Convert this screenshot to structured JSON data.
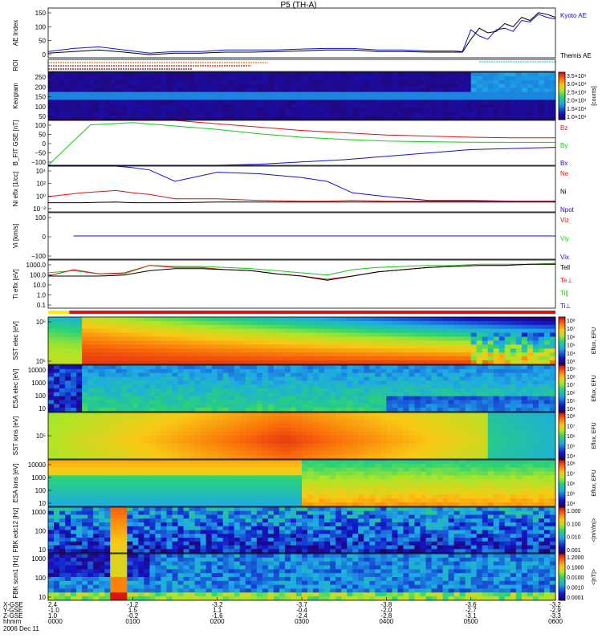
{
  "title": "P5 (TH-A)",
  "colors": {
    "black": "#000000",
    "red": "#dd1111",
    "green": "#11cc11",
    "blue": "#1111cc",
    "cyan": "#22cccc",
    "orange": "#dd7711"
  },
  "chart_data": [
    {
      "id": "ae",
      "type": "line",
      "ylabel": "AE Index",
      "yticks": [
        "150",
        "100",
        "50",
        "0"
      ],
      "ylim": [
        0,
        160
      ],
      "legend": [
        {
          "label": "Kyoto AE",
          "color": "#1111cc"
        },
        {
          "label": "Themis AE",
          "color": "#000000"
        }
      ],
      "x_hours": [
        0,
        0.3,
        0.6,
        0.9,
        1.2,
        1.5,
        1.8,
        2.1,
        2.4,
        2.7,
        3.0,
        3.3,
        3.6,
        3.9,
        4.2,
        4.5,
        4.8,
        4.9,
        5.0,
        5.1,
        5.2,
        5.3,
        5.4,
        5.5,
        5.6,
        5.7,
        5.8,
        5.9,
        6.0
      ],
      "series": [
        {
          "values": [
            20,
            30,
            35,
            25,
            15,
            20,
            20,
            25,
            25,
            25,
            28,
            30,
            30,
            25,
            25,
            22,
            22,
            20,
            90,
            70,
            60,
            90,
            95,
            85,
            120,
            115,
            140,
            130,
            125
          ],
          "color": "#1111cc"
        },
        {
          "values": [
            15,
            20,
            25,
            18,
            10,
            15,
            15,
            18,
            18,
            20,
            22,
            25,
            25,
            20,
            20,
            18,
            18,
            18,
            60,
            95,
            80,
            85,
            110,
            100,
            130,
            120,
            145,
            140,
            130
          ],
          "color": "#000000"
        }
      ]
    },
    {
      "id": "roi",
      "type": "bar",
      "ylabel": "ROI"
    },
    {
      "id": "keogram",
      "type": "heatmap",
      "ylabel": "Keogram",
      "yticks": [
        "250",
        "200",
        "150",
        "100",
        "50"
      ],
      "colorbar_ticks": [
        "3.5×10⁴",
        "3.0×10⁴",
        "2.5×10⁴",
        "2.0×10⁴",
        "1.5×10⁴",
        "1.0×10⁴"
      ],
      "colorbar_label": "[counts]"
    },
    {
      "id": "bfield",
      "type": "line",
      "ylabel": "B_FIT GSE [nT]",
      "yticks": [
        "100",
        "50",
        "0",
        "−50",
        "−100"
      ],
      "ylim": [
        -100,
        100
      ],
      "legend": [
        {
          "label": "Bz",
          "color": "#dd1111"
        },
        {
          "label": "By",
          "color": "#11cc11"
        },
        {
          "label": "Bx",
          "color": "#1111cc"
        }
      ],
      "x_hours": [
        0,
        0.5,
        1.0,
        1.5,
        2.0,
        2.5,
        3.0,
        3.5,
        4.0,
        4.5,
        5.0,
        5.5,
        6.0
      ],
      "series": [
        {
          "values": [
            100,
            100,
            100,
            100,
            85,
            70,
            55,
            45,
            35,
            30,
            25,
            22,
            22
          ],
          "color": "#dd1111"
        },
        {
          "values": [
            -100,
            80,
            90,
            75,
            60,
            40,
            25,
            15,
            8,
            5,
            3,
            2,
            2
          ],
          "color": "#11cc11"
        },
        {
          "values": [
            -100,
            -100,
            -100,
            -100,
            -100,
            -95,
            -85,
            -75,
            -60,
            -45,
            -30,
            -25,
            -20
          ],
          "color": "#1111cc"
        }
      ]
    },
    {
      "id": "density",
      "type": "line",
      "ylabel": "Ni eflx [1/cc]",
      "yticks": [
        "10⁴",
        "10²",
        "10⁰",
        "10⁻²"
      ],
      "ylim": [
        -2,
        4
      ],
      "legend": [
        {
          "label": "Ne",
          "color": "#dd1111"
        },
        {
          "label": "Ni",
          "color": "#000000"
        },
        {
          "label": "Npot",
          "color": "#1111cc"
        }
      ],
      "x_hours": [
        0,
        0.4,
        0.8,
        1.0,
        1.2,
        1.5,
        2.0,
        2.5,
        3.0,
        3.3,
        3.6,
        4.0,
        4.5,
        5.0,
        5.5,
        6.0
      ],
      "series": [
        {
          "values": [
            4,
            4,
            4,
            3.8,
            3.5,
            2,
            3.2,
            3,
            2.5,
            2,
            0.5,
            0,
            -0.5,
            -0.5,
            -0.6,
            -0.6
          ],
          "color": "#1111cc"
        },
        {
          "values": [
            0,
            0.5,
            0.8,
            0.5,
            0.3,
            -0.3,
            -0.3,
            -0.5,
            -0.6,
            -0.6,
            -0.5,
            -0.6,
            -0.6,
            -0.6,
            -0.6,
            -0.6
          ],
          "color": "#dd1111"
        },
        {
          "values": [
            -0.8,
            -0.8,
            -0.7,
            -0.8,
            -0.8,
            -0.8,
            -0.7,
            -0.7,
            -0.7,
            -0.7,
            -0.7,
            -0.7,
            -0.7,
            -0.7,
            -0.7,
            -0.7
          ],
          "color": "#000000"
        }
      ]
    },
    {
      "id": "velocity",
      "type": "line",
      "ylabel": "Vi [km/s]",
      "yticks": [
        "100",
        "0",
        "−100"
      ],
      "ylim": [
        -150,
        150
      ],
      "legend": [
        {
          "label": "Viz",
          "color": "#dd1111"
        },
        {
          "label": "Viy",
          "color": "#11cc11"
        },
        {
          "label": "Vix",
          "color": "#1111cc"
        }
      ],
      "x_hours": [
        0.3,
        6.0
      ],
      "series": [
        {
          "values": [
            0,
            0
          ],
          "color": "#dd1111"
        },
        {
          "values": [
            0,
            0
          ],
          "color": "#11cc11"
        },
        {
          "values": [
            0,
            0
          ],
          "color": "#1111cc"
        }
      ]
    },
    {
      "id": "temperature",
      "type": "line",
      "ylabel": "Ti eflx [eV]",
      "yticks": [
        "1000.0",
        "100.0",
        "10.0",
        "1.0",
        "0.1"
      ],
      "ylim": [
        -1,
        3.5
      ],
      "legend": [
        {
          "label": "Tell",
          "color": "#000000"
        },
        {
          "label": "Te⊥",
          "color": "#dd1111"
        },
        {
          "label": "Ti∥",
          "color": "#11cc11"
        },
        {
          "label": "Ti⊥",
          "color": "#1111cc"
        }
      ],
      "x_hours": [
        0,
        0.3,
        0.6,
        0.9,
        1.2,
        1.5,
        1.8,
        2.1,
        2.4,
        2.7,
        3.0,
        3.3,
        3.6,
        3.9,
        4.2,
        4.5,
        4.8,
        5.1,
        5.4,
        5.7,
        6.0
      ],
      "series": [
        {
          "values": [
            2.3,
            2.5,
            2.2,
            2.2,
            3.0,
            2.9,
            2.9,
            2.8,
            2.7,
            2.5,
            2.3,
            2.1,
            2.6,
            2.8,
            2.9,
            3.0,
            3.0,
            3.1,
            3.1,
            3.1,
            3.2
          ],
          "color": "#11cc11"
        },
        {
          "values": [
            2.0,
            2.6,
            2.2,
            2.3,
            3.0,
            2.8,
            2.8,
            2.6,
            2.5,
            2.2,
            2.0,
            1.7,
            2.0,
            2.4,
            2.6,
            2.8,
            2.9,
            3.0,
            3.0,
            3.1,
            3.1
          ],
          "color": "#dd1111"
        },
        {
          "values": [
            2.0,
            2.0,
            2.0,
            2.1,
            2.5,
            2.7,
            2.7,
            2.6,
            2.5,
            2.2,
            2.0,
            1.6,
            2.0,
            2.4,
            2.6,
            2.8,
            2.9,
            3.0,
            3.0,
            3.1,
            3.1
          ],
          "color": "#000000"
        }
      ]
    },
    {
      "id": "sst_e",
      "type": "heatmap",
      "ylabel": "SST elec [eV]",
      "yticks": [
        "10⁶",
        "10⁵"
      ],
      "colorbar_ticks": [
        "10⁸",
        "10⁷",
        "10⁶",
        "10⁵",
        "10⁴",
        "10³"
      ],
      "colorbar_label": "Eflux, EFU"
    },
    {
      "id": "esa_e",
      "type": "heatmap",
      "ylabel": "ESA elec [eV]",
      "yticks": [
        "10000",
        "1000",
        "100",
        "10"
      ],
      "colorbar_ticks": [
        "10⁹",
        "10⁸",
        "10⁷",
        "10⁶",
        "10⁵",
        "10⁴"
      ],
      "colorbar_label": "Eflux, EFU"
    },
    {
      "id": "sst_i",
      "type": "heatmap",
      "ylabel": "SST ions [eV]",
      "yticks": [
        "10⁵"
      ],
      "colorbar_ticks": [
        "10⁸",
        "10⁷",
        "10⁶",
        "10⁵",
        "10⁴"
      ],
      "colorbar_label": "Eflux, EFU"
    },
    {
      "id": "esa_i",
      "type": "heatmap",
      "ylabel": "ESA ions [eV]",
      "yticks": [
        "10000",
        "1000",
        "100",
        "10"
      ],
      "colorbar_ticks": [
        "10⁸",
        "10⁷",
        "10⁶",
        "10⁵",
        "10⁴"
      ],
      "colorbar_label": "Eflux, EFU"
    },
    {
      "id": "fbk1",
      "type": "heatmap",
      "ylabel": "FBK edc12 [Hz]",
      "yticks": [
        "1000",
        "100",
        "10"
      ],
      "colorbar_ticks": [
        "1.000",
        "0.100",
        "0.010",
        "0.001"
      ],
      "colorbar_label": "<|mV/m|>"
    },
    {
      "id": "fbk2",
      "type": "heatmap",
      "ylabel": "FBK scm1 [Hz]",
      "yticks": [
        "1000",
        "100",
        "10"
      ],
      "colorbar_ticks": [
        "1.2000",
        "0.1000",
        "0.0100",
        "0.0010",
        "0.0001"
      ],
      "colorbar_label": "<|nT|>"
    }
  ],
  "xaxis": {
    "row_labels": [
      "X-GSE",
      "Y-GSE",
      "Z-GSE",
      "hhmm",
      "2006 Dec 11"
    ],
    "ticks": [
      {
        "x": "2.4",
        "y": "-1.0",
        "z": "1.0",
        "t": "0000"
      },
      {
        "x": "-1.2",
        "y": "1.5",
        "z": "-0.2",
        "t": "0100"
      },
      {
        "x": "-3.2",
        "y": "1.1",
        "z": "-1.6",
        "t": "0200"
      },
      {
        "x": "-3.7",
        "y": "-0.4",
        "z": "-2.4",
        "t": "0300"
      },
      {
        "x": "-3.8",
        "y": "-2.0",
        "z": "-2.8",
        "t": "0400"
      },
      {
        "x": "-3.6",
        "y": "-2.7",
        "z": "-3.1",
        "t": "0500"
      },
      {
        "x": "-3.2",
        "y": "-2.9",
        "z": "-3.3",
        "t": "0600"
      }
    ]
  }
}
